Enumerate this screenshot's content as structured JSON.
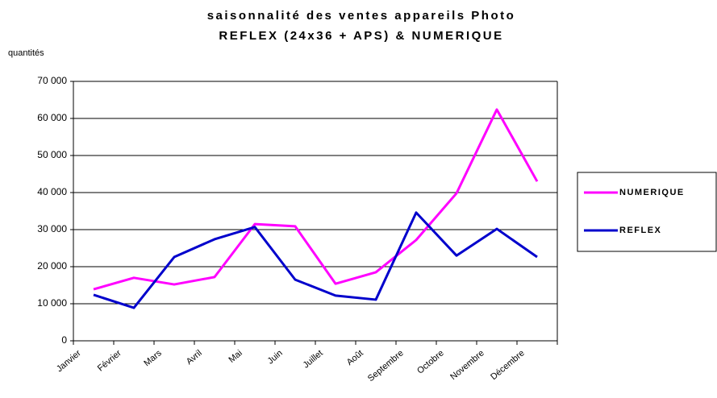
{
  "chart_data": {
    "type": "line",
    "title": [
      "saisonnalité des ventes appareils Photo",
      "REFLEX (24x36 + APS) & NUMERIQUE"
    ],
    "y_label": "quantités",
    "categories": [
      "Janvier",
      "Février",
      "Mars",
      "Avril",
      "Mai",
      "Juin",
      "Juillet",
      "Août",
      "Septembre",
      "Octobre",
      "Novembre",
      "Décembre"
    ],
    "series": [
      {
        "name": "NUMERIQUE",
        "color": "#ff00ff",
        "values": [
          13900,
          17000,
          15200,
          17200,
          31500,
          30900,
          15400,
          18500,
          27200,
          39800,
          62400,
          43000
        ]
      },
      {
        "name": "REFLEX",
        "color": "#0000cc",
        "values": [
          12400,
          8900,
          22600,
          27400,
          30700,
          16500,
          12200,
          11100,
          34600,
          23000,
          30200,
          22600
        ]
      }
    ],
    "ylim": [
      0,
      70000
    ],
    "yticks": [
      0,
      {
        "value": 10000,
        "label": "10 000"
      },
      {
        "value": 20000,
        "label": "20 000"
      },
      {
        "value": 30000,
        "label": "30 000"
      },
      {
        "value": 40000,
        "label": "40 000"
      },
      {
        "value": 50000,
        "label": "50 000"
      },
      {
        "value": 60000,
        "label": "60 000"
      },
      {
        "value": 70000,
        "label": "70 000"
      }
    ],
    "grid": true,
    "legend": "right"
  }
}
